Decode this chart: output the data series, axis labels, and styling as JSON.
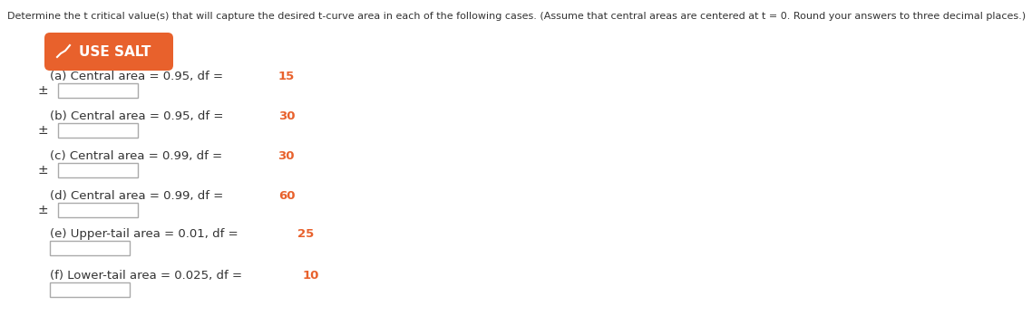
{
  "title_text": "Determine the t critical value(s) that will capture the desired t-curve area in each of the following cases. (Assume that central areas are centered at t = 0. Round your answers to three decimal places.)",
  "button_text": "USE SALT",
  "button_bg_color": "#E8612C",
  "button_text_color": "#ffffff",
  "items": [
    {
      "label_black": "(a) Central area = 0.95, df = ",
      "label_red": "15",
      "has_plus_minus": true
    },
    {
      "label_black": "(b) Central area = 0.95, df = ",
      "label_red": "30",
      "has_plus_minus": true
    },
    {
      "label_black": "(c) Central area = 0.99, df = ",
      "label_red": "30",
      "has_plus_minus": true
    },
    {
      "label_black": "(d) Central area = 0.99, df = ",
      "label_red": "60",
      "has_plus_minus": true
    },
    {
      "label_black": "(e) Upper-tail area = 0.01, df = ",
      "label_red": "25",
      "has_plus_minus": false
    },
    {
      "label_black": "(f) Lower-tail area = 0.025, df = ",
      "label_red": "10",
      "has_plus_minus": false
    }
  ],
  "bg_color": "#ffffff",
  "title_fontsize": 8.0,
  "item_fontsize": 9.5,
  "black_color": "#333333",
  "red_color": "#E8612C"
}
